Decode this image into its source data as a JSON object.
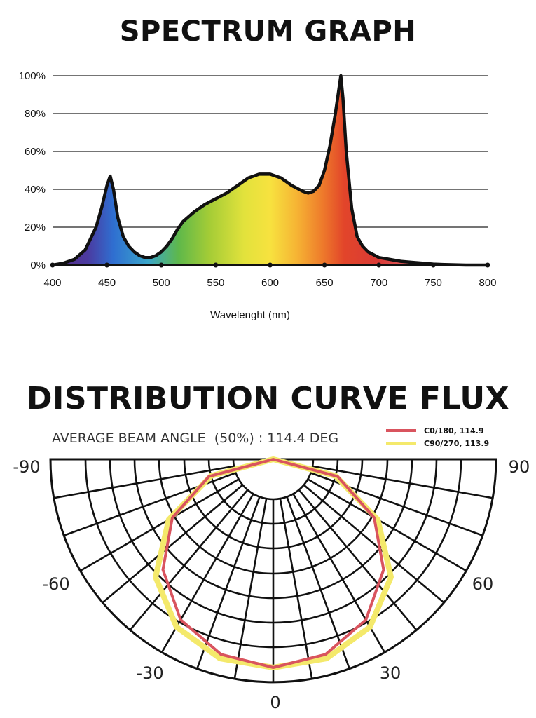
{
  "page": {
    "spectrum_title": "SPECTRUM GRAPH",
    "distribution_title": "DISTRIBUTION CURVE FLUX"
  },
  "chart_data": [
    {
      "type": "area",
      "title": "SPECTRUM GRAPH",
      "xlabel": "Wavelenght (nm)",
      "ylabel": "",
      "xlim": [
        400,
        800
      ],
      "ylim": [
        0,
        100
      ],
      "x_ticks": [
        "400",
        "450",
        "500",
        "550",
        "600",
        "650",
        "700",
        "750",
        "800"
      ],
      "y_ticks": [
        "0%",
        "20%",
        "40%",
        "60%",
        "80%",
        "100%"
      ],
      "grid": true,
      "fill": "visible-spectrum-gradient",
      "x": [
        400,
        410,
        420,
        430,
        440,
        445,
        450,
        453,
        456,
        460,
        465,
        470,
        475,
        480,
        485,
        490,
        495,
        500,
        505,
        510,
        515,
        520,
        530,
        540,
        550,
        560,
        570,
        580,
        590,
        600,
        610,
        620,
        630,
        635,
        640,
        645,
        650,
        655,
        660,
        663,
        665,
        667,
        670,
        675,
        680,
        685,
        690,
        700,
        710,
        720,
        730,
        740,
        750,
        760,
        780,
        800
      ],
      "y": [
        0,
        1,
        3,
        8,
        20,
        30,
        42,
        47,
        40,
        25,
        15,
        10,
        7,
        5,
        4,
        4,
        5,
        7,
        10,
        14,
        19,
        23,
        28,
        32,
        35,
        38,
        42,
        46,
        48,
        48,
        46,
        42,
        39,
        38,
        39,
        42,
        50,
        63,
        80,
        92,
        100,
        88,
        60,
        30,
        15,
        10,
        7,
        4,
        3,
        2,
        1.5,
        1,
        0.5,
        0.3,
        0,
        0
      ]
    },
    {
      "type": "polar",
      "title": "DISTRIBUTION CURVE FLUX",
      "subtitle": "AVERAGE BEAM ANGLE  (50%) : 114.4 DEG",
      "angle_labels": [
        "-90",
        "-60",
        "-30",
        "0",
        "30",
        "60",
        "90"
      ],
      "series": [
        {
          "name": "C0/180, 114.9",
          "color": "#d9545e",
          "angles": [
            -90,
            -75,
            -60,
            -45,
            -30,
            -15,
            0,
            15,
            30,
            45,
            60,
            75,
            90
          ],
          "values": [
            0,
            0.32,
            0.56,
            0.75,
            0.89,
            0.97,
            1.0,
            0.97,
            0.89,
            0.75,
            0.56,
            0.32,
            0
          ]
        },
        {
          "name": "C90/270, 113.9",
          "color": "#f4e96b",
          "angles": [
            -90,
            -75,
            -60,
            -45,
            -30,
            -15,
            0,
            15,
            30,
            45,
            60,
            75,
            90
          ],
          "values": [
            0,
            0.31,
            0.58,
            0.8,
            0.93,
            0.99,
            1.0,
            0.99,
            0.93,
            0.8,
            0.58,
            0.31,
            0
          ]
        }
      ]
    }
  ]
}
